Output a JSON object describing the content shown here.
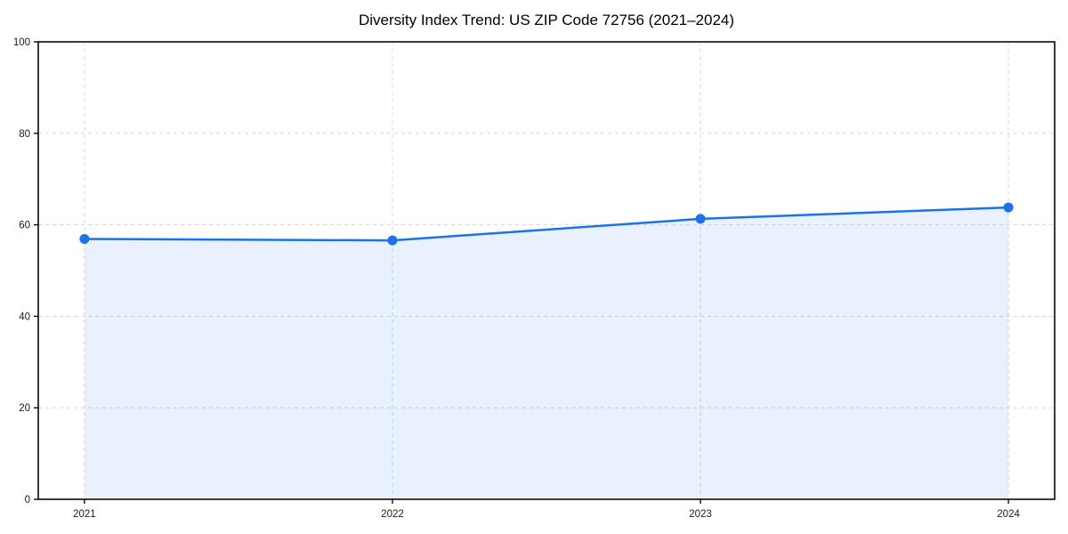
{
  "chart_data": {
    "type": "area",
    "title": "Diversity Index Trend: US ZIP Code 72756 (2021–2024)",
    "x": [
      2021,
      2022,
      2023,
      2024
    ],
    "series": [
      {
        "name": "Diversity Index",
        "values": [
          56.9,
          56.6,
          61.3,
          63.8
        ]
      }
    ],
    "xlabel": "",
    "ylabel": "",
    "ylim": [
      0,
      100
    ],
    "yticks": [
      0,
      20,
      40,
      60,
      80,
      100
    ],
    "xtick_labels": [
      "2021",
      "2022",
      "2023",
      "2024"
    ],
    "ytick_labels": [
      "0",
      "20",
      "40",
      "60",
      "80",
      "100"
    ],
    "grid": "dashed",
    "legend": "none",
    "colors": {
      "line": "#1a73e8",
      "marker": "#1a73e8",
      "fill": "#1a73e8",
      "fill_opacity": 0.1,
      "grid": "#d6d6d6",
      "spine": "#0a0a0a",
      "tick_label": "#1a1a1a",
      "title": "#000000",
      "background": "#ffffff"
    }
  }
}
